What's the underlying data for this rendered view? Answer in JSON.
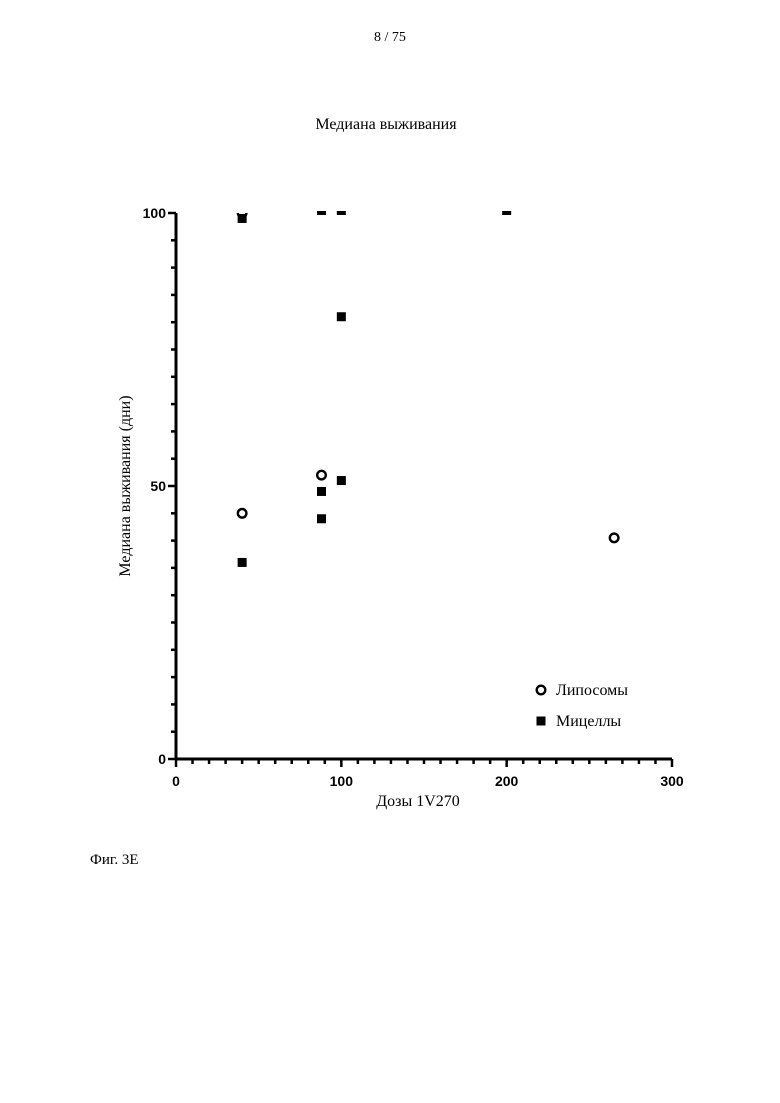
{
  "page": {
    "number": "8 / 75",
    "figure_caption": "Фиг. 3E"
  },
  "colors": {
    "ink": "#000000",
    "background": "#ffffff"
  },
  "chart_data": {
    "type": "scatter",
    "title": "Медиана выживания",
    "xlabel": "Дозы 1V270",
    "ylabel": "Медиана выживания (дни)",
    "xlim": [
      0,
      300
    ],
    "ylim": [
      0,
      100
    ],
    "x_ticks": [
      "0",
      "100",
      "200",
      "300"
    ],
    "y_ticks": [
      "0",
      "50",
      "100"
    ],
    "grid": false,
    "legend_position": "bottom-right",
    "series": [
      {
        "name": "Липосомы",
        "marker": "open-circle",
        "points": [
          {
            "x": 40,
            "y": 100
          },
          {
            "x": 40,
            "y": 45
          },
          {
            "x": 88,
            "y": 52
          },
          {
            "x": 265,
            "y": 40.5
          }
        ]
      },
      {
        "name": "Мицеллы",
        "marker": "filled-square",
        "points": [
          {
            "x": 40,
            "y": 99
          },
          {
            "x": 40,
            "y": 36
          },
          {
            "x": 88,
            "y": 100
          },
          {
            "x": 88,
            "y": 49
          },
          {
            "x": 88,
            "y": 44
          },
          {
            "x": 100,
            "y": 100
          },
          {
            "x": 100,
            "y": 81
          },
          {
            "x": 100,
            "y": 51
          },
          {
            "x": 200,
            "y": 100
          }
        ]
      }
    ]
  }
}
